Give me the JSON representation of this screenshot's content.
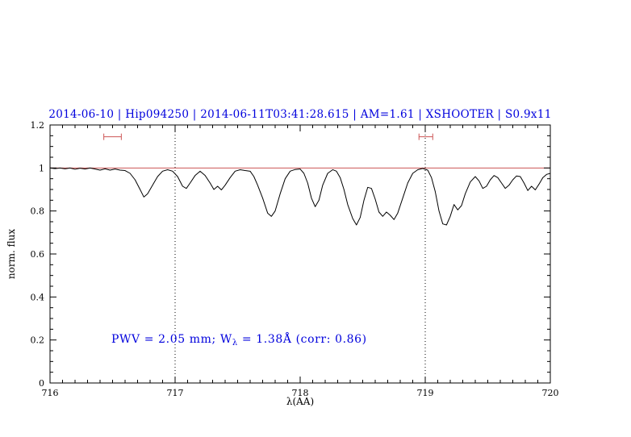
{
  "chart_data": {
    "type": "line",
    "title": "2014-06-10 | Hip094250 | 2014-06-11T03:41:28.615 | AM=1.61 | XSHOOTER | S0.9x11",
    "title_color": "#0000dd",
    "xlabel": "λ(AA)",
    "ylabel": "norm. flux",
    "xlim": [
      716,
      720
    ],
    "ylim": [
      0,
      1.2
    ],
    "xticks": {
      "values": [
        716,
        717,
        718,
        719,
        720
      ],
      "labels": [
        "716",
        "717",
        "718",
        "719",
        "720"
      ],
      "minor_step": 0.1
    },
    "yticks": {
      "values": [
        0,
        0.2,
        0.4,
        0.6,
        0.8,
        1.0,
        1.2
      ],
      "labels": [
        "0",
        "0.2",
        "0.4",
        "0.6",
        "0.8",
        "1",
        "1.2"
      ],
      "minor_step": 0.05
    },
    "grid": false,
    "vlines": [
      717,
      719
    ],
    "hline": {
      "y": 1.0,
      "color": "#cc5555"
    },
    "range_markers": [
      {
        "x1": 716.43,
        "x2": 716.57,
        "y": 1.145
      },
      {
        "x1": 718.95,
        "x2": 719.06,
        "y": 1.145
      }
    ],
    "marker_color": "#cc5555",
    "series": [
      {
        "name": "telluric-spectrum",
        "color": "#000000",
        "x": [
          716.0,
          716.04,
          716.08,
          716.12,
          716.16,
          716.2,
          716.24,
          716.28,
          716.32,
          716.36,
          716.4,
          716.44,
          716.48,
          716.52,
          716.56,
          716.6,
          716.64,
          716.68,
          716.72,
          716.75,
          716.78,
          716.82,
          716.86,
          716.9,
          716.94,
          716.98,
          717.02,
          717.06,
          717.09,
          717.12,
          717.16,
          717.2,
          717.24,
          717.28,
          717.31,
          717.34,
          717.37,
          717.4,
          717.44,
          717.48,
          717.52,
          717.56,
          717.6,
          717.63,
          717.66,
          717.7,
          717.74,
          717.77,
          717.8,
          717.84,
          717.88,
          717.92,
          717.96,
          718.0,
          718.03,
          718.06,
          718.09,
          718.12,
          718.15,
          718.18,
          718.22,
          718.26,
          718.29,
          718.32,
          718.35,
          718.38,
          718.42,
          718.45,
          718.48,
          718.51,
          718.54,
          718.57,
          718.6,
          718.63,
          718.66,
          718.69,
          718.72,
          718.75,
          718.78,
          718.82,
          718.86,
          718.9,
          718.94,
          718.98,
          719.02,
          719.05,
          719.08,
          719.11,
          719.14,
          719.17,
          719.2,
          719.23,
          719.26,
          719.29,
          719.32,
          719.36,
          719.4,
          719.43,
          719.46,
          719.49,
          719.52,
          719.55,
          719.58,
          719.61,
          719.64,
          719.67,
          719.7,
          719.73,
          719.76,
          719.79,
          719.82,
          719.85,
          719.88,
          719.91,
          719.94,
          719.97,
          720.0
        ],
        "y": [
          1.0,
          0.997,
          1.0,
          0.996,
          1.0,
          0.994,
          0.999,
          0.995,
          1.0,
          0.995,
          0.99,
          0.996,
          0.99,
          0.995,
          0.99,
          0.988,
          0.975,
          0.945,
          0.9,
          0.865,
          0.88,
          0.92,
          0.96,
          0.985,
          0.992,
          0.985,
          0.96,
          0.915,
          0.905,
          0.93,
          0.965,
          0.985,
          0.965,
          0.93,
          0.9,
          0.915,
          0.898,
          0.92,
          0.955,
          0.985,
          0.992,
          0.988,
          0.985,
          0.96,
          0.92,
          0.86,
          0.79,
          0.775,
          0.8,
          0.88,
          0.95,
          0.985,
          0.993,
          0.995,
          0.975,
          0.93,
          0.86,
          0.82,
          0.85,
          0.92,
          0.975,
          0.992,
          0.985,
          0.955,
          0.9,
          0.83,
          0.765,
          0.735,
          0.77,
          0.85,
          0.91,
          0.905,
          0.855,
          0.795,
          0.775,
          0.795,
          0.78,
          0.76,
          0.79,
          0.86,
          0.93,
          0.975,
          0.992,
          0.998,
          0.99,
          0.955,
          0.89,
          0.8,
          0.74,
          0.735,
          0.775,
          0.83,
          0.805,
          0.825,
          0.88,
          0.935,
          0.96,
          0.94,
          0.905,
          0.915,
          0.945,
          0.965,
          0.955,
          0.93,
          0.905,
          0.92,
          0.945,
          0.963,
          0.96,
          0.93,
          0.895,
          0.915,
          0.898,
          0.925,
          0.955,
          0.97,
          0.975
        ]
      }
    ],
    "annotation": {
      "prefix": "PWV = 2.05 mm; W",
      "sub": "λ",
      "suffix": " = 1.38Å (corr: 0.86)",
      "color": "#0000dd"
    }
  }
}
